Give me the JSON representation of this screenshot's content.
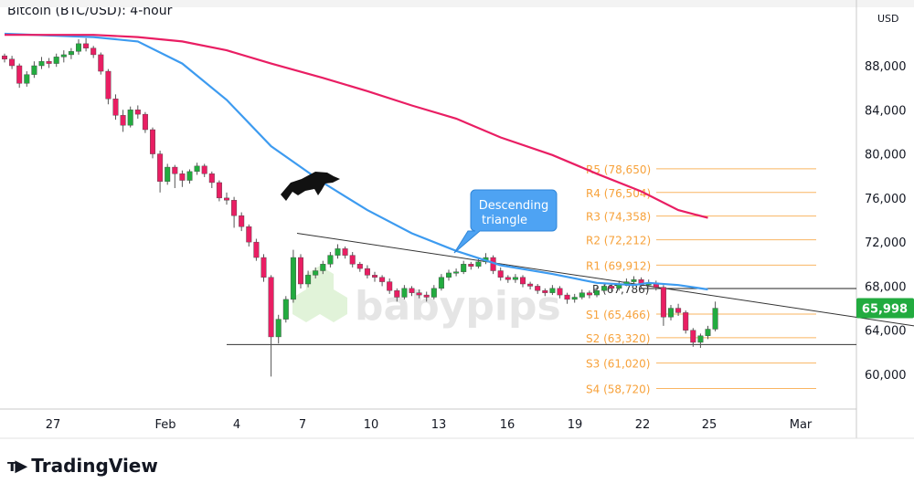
{
  "title": "Bitcoin (BTC/USD): 4-hour",
  "brand": "TradingView",
  "watermark": "babypips",
  "colors": {
    "up": "#22ab3f",
    "down": "#e91e63",
    "sma_fast": "#3d9bf0",
    "sma_slow": "#e91e63",
    "pivot": "#f7a23b",
    "price_tag": "#22ab3f",
    "callout": "#4ea3f3"
  },
  "chart_data": {
    "type": "candlestick",
    "currency": "USD",
    "ylim": [
      57000,
      92000
    ],
    "y_ticks": [
      "88,000",
      "84,000",
      "80,000",
      "76,000",
      "72,000",
      "68,000",
      "64,000",
      "60,000"
    ],
    "y_tick_values": [
      88000,
      84000,
      80000,
      76000,
      72000,
      68000,
      64000,
      60000
    ],
    "x_ticks": [
      "27",
      "Feb",
      "4",
      "7",
      "10",
      "13",
      "16",
      "19",
      "22",
      "25",
      "Mar"
    ],
    "last_price": "65,998",
    "candles": [
      [
        88900,
        89100,
        88300,
        88600
      ],
      [
        88600,
        88900,
        87700,
        88000
      ],
      [
        88000,
        88200,
        86000,
        86400
      ],
      [
        86400,
        87500,
        86100,
        87200
      ],
      [
        87200,
        88400,
        86900,
        88000
      ],
      [
        88000,
        88800,
        87700,
        88400
      ],
      [
        88400,
        88700,
        87800,
        88200
      ],
      [
        88200,
        89100,
        87900,
        88800
      ],
      [
        88800,
        89400,
        88300,
        89000
      ],
      [
        89000,
        89600,
        88600,
        89300
      ],
      [
        89300,
        90400,
        89000,
        90000
      ],
      [
        90000,
        90500,
        89300,
        89600
      ],
      [
        89600,
        89800,
        88700,
        89000
      ],
      [
        89000,
        89200,
        87200,
        87500
      ],
      [
        87500,
        87700,
        84500,
        85000
      ],
      [
        85000,
        85400,
        83100,
        83500
      ],
      [
        83500,
        84000,
        82000,
        82600
      ],
      [
        82600,
        84300,
        82400,
        84000
      ],
      [
        84000,
        84400,
        83200,
        83600
      ],
      [
        83600,
        83800,
        81900,
        82200
      ],
      [
        82200,
        82400,
        79600,
        80000
      ],
      [
        80000,
        80300,
        76500,
        77500
      ],
      [
        77500,
        79100,
        77200,
        78800
      ],
      [
        78800,
        79000,
        76900,
        78200
      ],
      [
        78200,
        78500,
        77000,
        77600
      ],
      [
        77600,
        78600,
        77300,
        78400
      ],
      [
        78400,
        79200,
        78100,
        78900
      ],
      [
        78900,
        79100,
        77900,
        78200
      ],
      [
        78200,
        78400,
        76900,
        77400
      ],
      [
        77400,
        77600,
        75700,
        76000
      ],
      [
        76000,
        76500,
        75400,
        75800
      ],
      [
        75800,
        76100,
        73300,
        74400
      ],
      [
        74400,
        74700,
        73000,
        73400
      ],
      [
        73400,
        73600,
        71600,
        72000
      ],
      [
        72000,
        72300,
        70300,
        70600
      ],
      [
        70600,
        70900,
        68400,
        68800
      ],
      [
        68800,
        69000,
        59800,
        63400
      ],
      [
        63400,
        65400,
        62800,
        65000
      ],
      [
        65000,
        67100,
        64700,
        66800
      ],
      [
        66800,
        71300,
        66500,
        70600
      ],
      [
        70600,
        70900,
        67800,
        68200
      ],
      [
        68200,
        69400,
        67900,
        69000
      ],
      [
        69000,
        69700,
        68700,
        69400
      ],
      [
        69400,
        70300,
        69100,
        70000
      ],
      [
        70000,
        71100,
        69700,
        70800
      ],
      [
        70800,
        71800,
        70500,
        71400
      ],
      [
        71400,
        71600,
        70500,
        70800
      ],
      [
        70800,
        71100,
        69700,
        70000
      ],
      [
        70000,
        70200,
        69300,
        69600
      ],
      [
        69600,
        69900,
        68700,
        69000
      ],
      [
        69000,
        69300,
        68400,
        68800
      ],
      [
        68800,
        69000,
        68000,
        68400
      ],
      [
        68400,
        68700,
        67300,
        67600
      ],
      [
        67600,
        67800,
        66600,
        67000
      ],
      [
        67000,
        68100,
        66800,
        67800
      ],
      [
        67800,
        68000,
        67100,
        67400
      ],
      [
        67400,
        67700,
        66900,
        67200
      ],
      [
        67200,
        67500,
        66600,
        67000
      ],
      [
        67000,
        68100,
        66800,
        67800
      ],
      [
        67800,
        69100,
        67600,
        68800
      ],
      [
        68800,
        69500,
        68500,
        69200
      ],
      [
        69200,
        69600,
        68900,
        69300
      ],
      [
        69300,
        70300,
        69100,
        70000
      ],
      [
        70000,
        70200,
        69500,
        69800
      ],
      [
        69800,
        70500,
        69600,
        70200
      ],
      [
        70200,
        71000,
        70000,
        70600
      ],
      [
        70600,
        70800,
        69100,
        69400
      ],
      [
        69400,
        69700,
        68500,
        68800
      ],
      [
        68800,
        69000,
        68300,
        68600
      ],
      [
        68600,
        69100,
        68300,
        68800
      ],
      [
        68800,
        69000,
        67900,
        68200
      ],
      [
        68200,
        68400,
        67700,
        68000
      ],
      [
        68000,
        68200,
        67300,
        67600
      ],
      [
        67600,
        67800,
        67100,
        67400
      ],
      [
        67400,
        68100,
        67200,
        67800
      ],
      [
        67800,
        68000,
        66900,
        67200
      ],
      [
        67200,
        67400,
        66400,
        66800
      ],
      [
        66800,
        67300,
        66500,
        67000
      ],
      [
        67000,
        67700,
        66800,
        67400
      ],
      [
        67400,
        67600,
        66900,
        67200
      ],
      [
        67200,
        67900,
        67000,
        67600
      ],
      [
        67600,
        68300,
        67400,
        68000
      ],
      [
        68000,
        68200,
        67500,
        67800
      ],
      [
        67800,
        68500,
        67600,
        68200
      ],
      [
        68200,
        68700,
        68000,
        68400
      ],
      [
        68400,
        68900,
        68200,
        68600
      ],
      [
        68600,
        68800,
        67800,
        68100
      ],
      [
        68100,
        68600,
        67900,
        68300
      ],
      [
        68300,
        68500,
        67600,
        67900
      ],
      [
        67900,
        68100,
        64400,
        65200
      ],
      [
        65200,
        66300,
        64900,
        66000
      ],
      [
        66000,
        66400,
        65300,
        65600
      ],
      [
        65600,
        65800,
        63700,
        64000
      ],
      [
        64000,
        64200,
        62500,
        62900
      ],
      [
        62900,
        63700,
        62400,
        63500
      ],
      [
        63500,
        64400,
        63200,
        64100
      ],
      [
        64100,
        66600,
        63900,
        66000
      ]
    ],
    "moving_averages": [
      {
        "color": "#3d9bf0",
        "points": [
          [
            0,
            90900
          ],
          [
            12,
            90600
          ],
          [
            18,
            90200
          ],
          [
            24,
            88200
          ],
          [
            30,
            84900
          ],
          [
            36,
            80700
          ],
          [
            43,
            77400
          ],
          [
            49,
            74900
          ],
          [
            55,
            72800
          ],
          [
            61,
            71200
          ],
          [
            67,
            69900
          ],
          [
            74,
            69100
          ],
          [
            80,
            68300
          ],
          [
            85,
            68100
          ],
          [
            87,
            68300
          ],
          [
            91,
            68100
          ],
          [
            95,
            67700
          ]
        ]
      },
      {
        "color": "#e91e63",
        "points": [
          [
            0,
            90800
          ],
          [
            12,
            90800
          ],
          [
            18,
            90600
          ],
          [
            24,
            90200
          ],
          [
            30,
            89400
          ],
          [
            36,
            88200
          ],
          [
            43,
            86900
          ],
          [
            49,
            85700
          ],
          [
            55,
            84400
          ],
          [
            61,
            83200
          ],
          [
            67,
            81500
          ],
          [
            74,
            79900
          ],
          [
            80,
            78200
          ],
          [
            86,
            76600
          ],
          [
            91,
            74900
          ],
          [
            95,
            74200
          ]
        ]
      }
    ],
    "pivot_levels": [
      {
        "label": "R5 (78,650)",
        "value": 78650
      },
      {
        "label": "R4 (76,504)",
        "value": 76504
      },
      {
        "label": "R3 (74,358)",
        "value": 74358
      },
      {
        "label": "R2 (72,212)",
        "value": 72212
      },
      {
        "label": "R1 (69,912)",
        "value": 69912
      },
      {
        "label": "P (67,786)",
        "value": 67786
      },
      {
        "label": "S1 (65,466)",
        "value": 65466
      },
      {
        "label": "S2 (63,320)",
        "value": 63320
      },
      {
        "label": "S3 (61,020)",
        "value": 61020
      },
      {
        "label": "S4 (58,720)",
        "value": 58720
      }
    ],
    "trendline_resistance": [
      [
        39,
        72800
      ],
      [
        999,
        64400
      ]
    ],
    "support_level": 62700,
    "annotation": "Descending triangle"
  }
}
